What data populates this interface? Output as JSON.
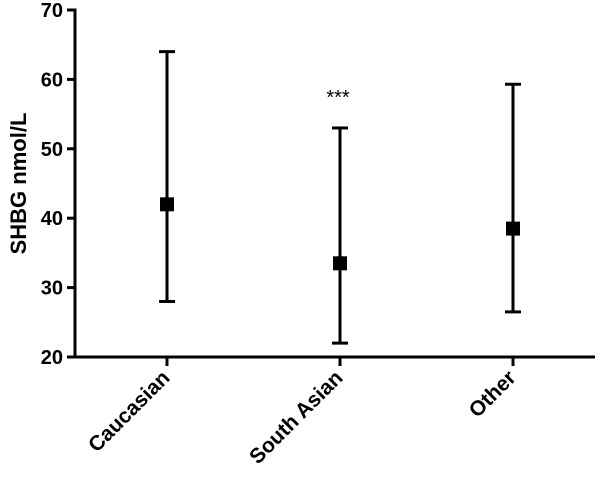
{
  "chart_data": {
    "type": "scatter",
    "title": "",
    "xlabel": "",
    "ylabel": "SHBG nmol/L",
    "ylim": [
      20,
      70
    ],
    "yticks": [
      20,
      30,
      40,
      50,
      60,
      70
    ],
    "categories": [
      "Caucasian",
      "South Asian",
      "Other"
    ],
    "points": [
      {
        "category": "Caucasian",
        "value": 42,
        "lower": 28,
        "upper": 64
      },
      {
        "category": "South Asian",
        "value": 33.5,
        "lower": 22,
        "upper": 53
      },
      {
        "category": "Other",
        "value": 38.5,
        "lower": 26.5,
        "upper": 59.3
      }
    ],
    "annotations": [
      {
        "category": "South Asian",
        "text": "***"
      }
    ],
    "grid": false,
    "legend": "none"
  }
}
